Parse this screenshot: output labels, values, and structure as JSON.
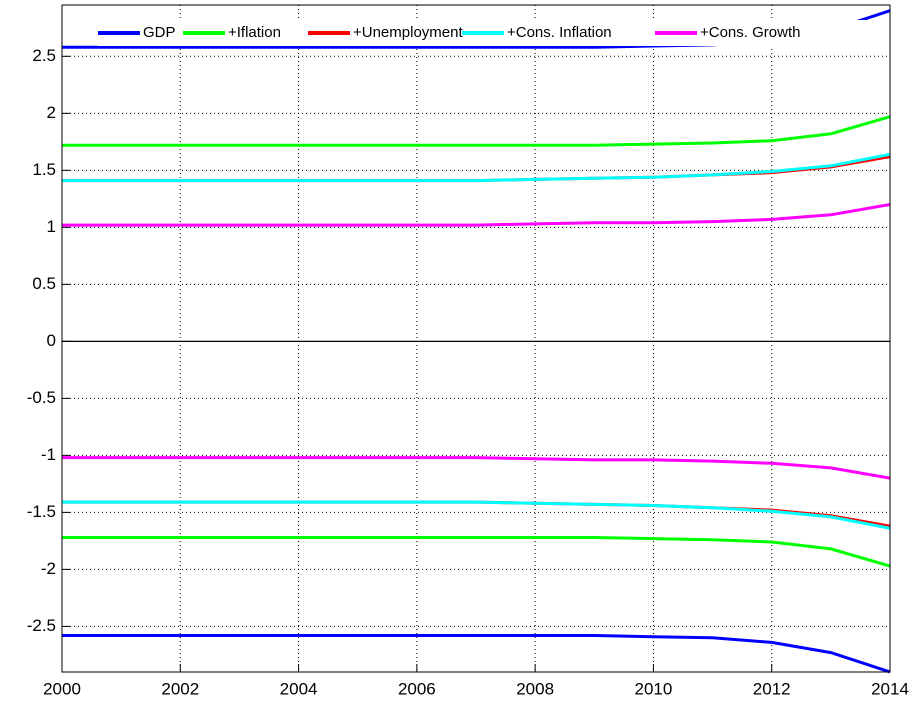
{
  "chart_data": {
    "type": "line",
    "x": [
      2000,
      2001,
      2002,
      2003,
      2004,
      2005,
      2006,
      2007,
      2008,
      2009,
      2010,
      2011,
      2012,
      2013,
      2014
    ],
    "series": [
      {
        "name": "GDP",
        "color": "#0000ff",
        "values": [
          2.58,
          2.58,
          2.58,
          2.58,
          2.58,
          2.58,
          2.58,
          2.58,
          2.58,
          2.58,
          2.59,
          2.6,
          2.64,
          2.73,
          2.9
        ],
        "lower": [
          -2.58,
          -2.58,
          -2.58,
          -2.58,
          -2.58,
          -2.58,
          -2.58,
          -2.58,
          -2.58,
          -2.58,
          -2.59,
          -2.6,
          -2.64,
          -2.73,
          -2.9
        ]
      },
      {
        "name": "+Iflation",
        "color": "#00ff00",
        "values": [
          1.72,
          1.72,
          1.72,
          1.72,
          1.72,
          1.72,
          1.72,
          1.72,
          1.72,
          1.72,
          1.73,
          1.74,
          1.76,
          1.82,
          1.97
        ],
        "lower": [
          -1.72,
          -1.72,
          -1.72,
          -1.72,
          -1.72,
          -1.72,
          -1.72,
          -1.72,
          -1.72,
          -1.72,
          -1.73,
          -1.74,
          -1.76,
          -1.82,
          -1.97
        ]
      },
      {
        "name": "+Unemployment",
        "color": "#ff0000",
        "values": [
          1.41,
          1.41,
          1.41,
          1.41,
          1.41,
          1.41,
          1.41,
          1.41,
          1.42,
          1.43,
          1.44,
          1.46,
          1.48,
          1.53,
          1.62
        ],
        "lower": [
          -1.41,
          -1.41,
          -1.41,
          -1.41,
          -1.41,
          -1.41,
          -1.41,
          -1.41,
          -1.42,
          -1.43,
          -1.44,
          -1.46,
          -1.48,
          -1.53,
          -1.62
        ]
      },
      {
        "name": "+Cons. Inflation",
        "color": "#00ffff",
        "values": [
          1.41,
          1.41,
          1.41,
          1.41,
          1.41,
          1.41,
          1.41,
          1.41,
          1.42,
          1.43,
          1.44,
          1.46,
          1.49,
          1.54,
          1.64
        ],
        "lower": [
          -1.41,
          -1.41,
          -1.41,
          -1.41,
          -1.41,
          -1.41,
          -1.41,
          -1.41,
          -1.42,
          -1.43,
          -1.44,
          -1.46,
          -1.49,
          -1.54,
          -1.64
        ]
      },
      {
        "name": "+Cons. Growth",
        "color": "#ff00ff",
        "values": [
          1.02,
          1.02,
          1.02,
          1.02,
          1.02,
          1.02,
          1.02,
          1.02,
          1.03,
          1.04,
          1.04,
          1.05,
          1.07,
          1.11,
          1.2
        ],
        "lower": [
          -1.02,
          -1.02,
          -1.02,
          -1.02,
          -1.02,
          -1.02,
          -1.02,
          -1.02,
          -1.03,
          -1.04,
          -1.04,
          -1.05,
          -1.07,
          -1.11,
          -1.2
        ]
      }
    ],
    "xlim": [
      2000,
      2014
    ],
    "xticks": [
      2000,
      2002,
      2004,
      2006,
      2008,
      2010,
      2012,
      2014
    ],
    "ylim": [
      -2.9,
      2.95
    ],
    "yticks": [
      -2.5,
      -2,
      -1.5,
      -1,
      -0.5,
      0,
      0.5,
      1,
      1.5,
      2,
      2.5
    ],
    "grid": true
  }
}
